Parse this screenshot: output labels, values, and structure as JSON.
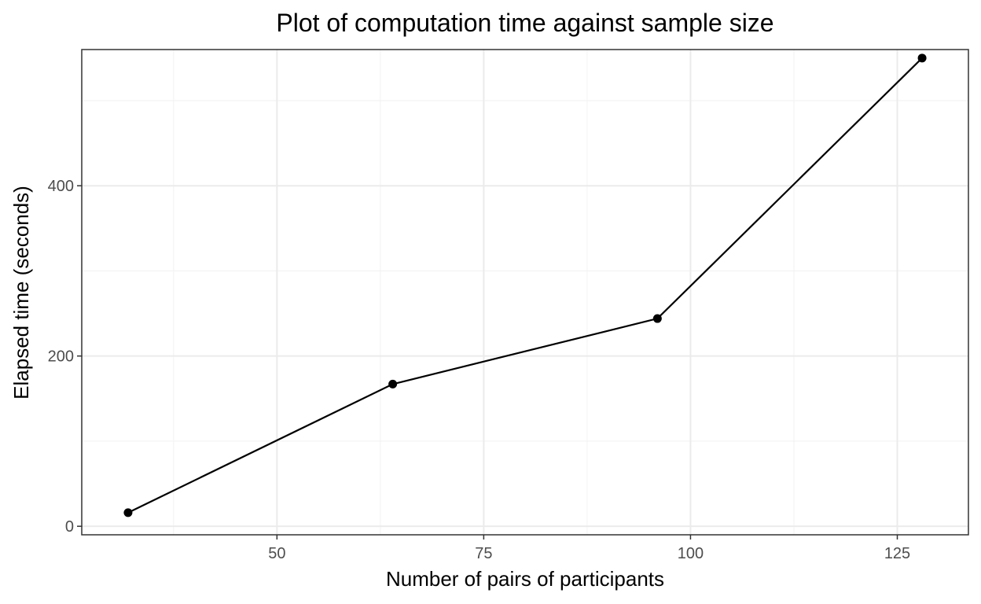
{
  "chart_data": {
    "type": "line",
    "title": "Plot of computation time against sample size",
    "xlabel": "Number of pairs of participants",
    "ylabel": "Elapsed time (seconds)",
    "x": [
      32,
      64,
      96,
      128
    ],
    "y": [
      16,
      167,
      244,
      550
    ],
    "xlim": [
      26.4,
      133.6
    ],
    "ylim": [
      -10,
      560
    ],
    "x_ticks": [
      50,
      75,
      100,
      125
    ],
    "x_minor_ticks": [
      37.5,
      62.5,
      87.5,
      112.5
    ],
    "y_ticks": [
      0,
      200,
      400
    ],
    "y_minor_ticks": [
      100,
      300,
      500
    ],
    "grid": true,
    "legend": "none",
    "colors": {
      "line": "#000000",
      "points": "#000000",
      "grid_major": "#ebebeb",
      "grid_minor": "#f2f2f2",
      "panel_border": "#333333"
    }
  }
}
